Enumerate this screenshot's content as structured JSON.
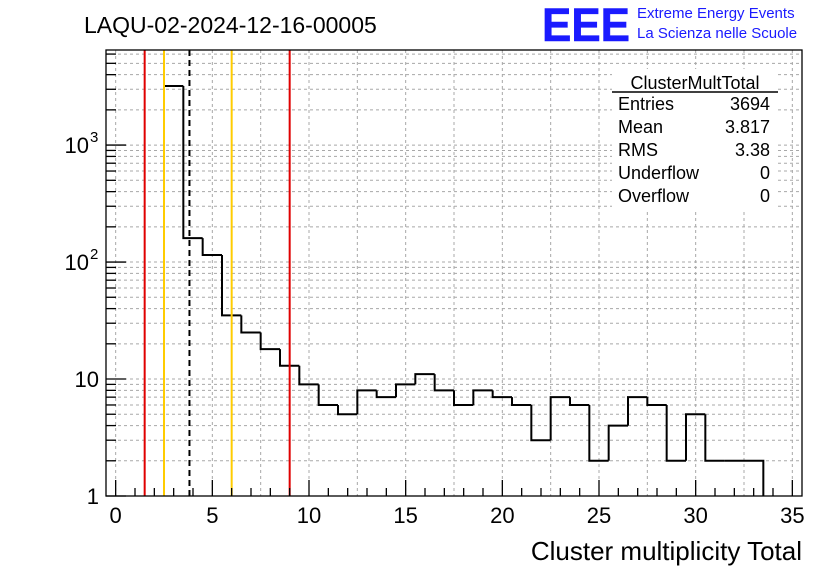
{
  "run_title": "LAQU-02-2024-12-16-00005",
  "logo": {
    "mark": "EEE",
    "line1": "Extreme Energy Events",
    "line2": "La Scienza nelle Scuole",
    "color": "#1a1aff"
  },
  "stats_box": {
    "name": "ClusterMultTotal",
    "rows": [
      {
        "label": "Entries",
        "value": "3694"
      },
      {
        "label": "Mean",
        "value": "3.817"
      },
      {
        "label": "RMS",
        "value": "3.38"
      },
      {
        "label": "Underflow",
        "value": "0"
      },
      {
        "label": "Overflow",
        "value": "0"
      }
    ]
  },
  "chart_data": {
    "type": "bar",
    "title": "LAQU-02-2024-12-16-00005",
    "xlabel": "Cluster multiplicity Total",
    "ylabel": "",
    "xlim": [
      -0.5,
      35.5
    ],
    "ylim": [
      1,
      6500
    ],
    "yscale": "log",
    "grid": true,
    "bin_width": 1,
    "bin_edges_start": 2.5,
    "values": [
      3200,
      160,
      115,
      35,
      25,
      18,
      13,
      9,
      6,
      5,
      8,
      7,
      9,
      11,
      8,
      6,
      8,
      7,
      6,
      3,
      7,
      6,
      2,
      4,
      7,
      6,
      2,
      5,
      2,
      2,
      2
    ],
    "x_ticks": [
      0,
      5,
      10,
      15,
      20,
      25,
      30,
      35
    ],
    "y_tick_labels": [
      {
        "value": 1,
        "label": "1"
      },
      {
        "value": 10,
        "label": "10"
      },
      {
        "value": 100,
        "label": "10",
        "exp": "2"
      },
      {
        "value": 1000,
        "label": "10",
        "exp": "3"
      }
    ],
    "vertical_lines": [
      {
        "x": 1.5,
        "color": "#e00000",
        "style": "solid"
      },
      {
        "x": 2.5,
        "color": "#ffcc00",
        "style": "solid"
      },
      {
        "x": 3.817,
        "color": "#000000",
        "style": "dashed"
      },
      {
        "x": 6.0,
        "color": "#ffcc00",
        "style": "solid"
      },
      {
        "x": 9.0,
        "color": "#e00000",
        "style": "solid"
      }
    ]
  }
}
